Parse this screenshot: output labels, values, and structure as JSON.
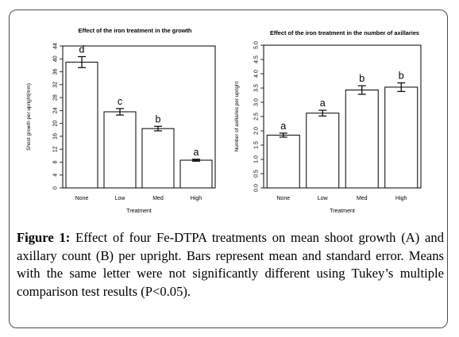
{
  "chart_data": [
    {
      "type": "bar",
      "title": "Effect of the iron treatment in the growth",
      "xlabel": "Treatment",
      "ylabel": "Shoot growth per upright(mm)",
      "categories": [
        "None",
        "Low",
        "Med",
        "High"
      ],
      "values": [
        39.0,
        23.6,
        18.4,
        8.6
      ],
      "errors": [
        1.7,
        1.0,
        0.7,
        0.3
      ],
      "letters": [
        "d",
        "c",
        "b",
        "a"
      ],
      "ylim": [
        0,
        44
      ],
      "yticks": [
        0,
        4,
        8,
        12,
        16,
        20,
        24,
        28,
        32,
        36,
        40,
        44
      ],
      "ytick_labels": [
        "0",
        "4",
        "8",
        "12",
        "16",
        "20",
        "24",
        "28",
        "32",
        "36",
        "40",
        "44"
      ],
      "grid": false,
      "bar_color": "#ffffff",
      "edge_color": "#000000"
    },
    {
      "type": "bar",
      "title": "Effect of the iron treatment in the number of axillaries",
      "xlabel": "Treatment",
      "ylabel": "Number of axillaries per upright",
      "categories": [
        "None",
        "Low",
        "Med",
        "High"
      ],
      "values": [
        1.85,
        2.62,
        3.43,
        3.53
      ],
      "errors": [
        0.07,
        0.1,
        0.15,
        0.15
      ],
      "letters": [
        "a",
        "a",
        "b",
        "b"
      ],
      "ylim": [
        0,
        5
      ],
      "yticks": [
        0,
        0.5,
        1,
        1.5,
        2,
        2.5,
        3,
        3.5,
        4,
        4.5,
        5
      ],
      "ytick_labels": [
        "0.0",
        "0.5",
        "1.0",
        "1.5",
        "2.0",
        "2.5",
        "3.0",
        "3.5",
        "4.0",
        "4.5",
        "5.0"
      ],
      "grid": false,
      "bar_color": "#ffffff",
      "edge_color": "#000000"
    }
  ],
  "caption": {
    "label": "Figure 1:",
    "text": " Effect of four Fe-DTPA treatments on mean shoot growth (A) and axillary count (B) per upright. Bars represent mean and standard error. Means with the same letter were not significantly different using Tukey’s multiple comparison test results (P<0.05)."
  }
}
